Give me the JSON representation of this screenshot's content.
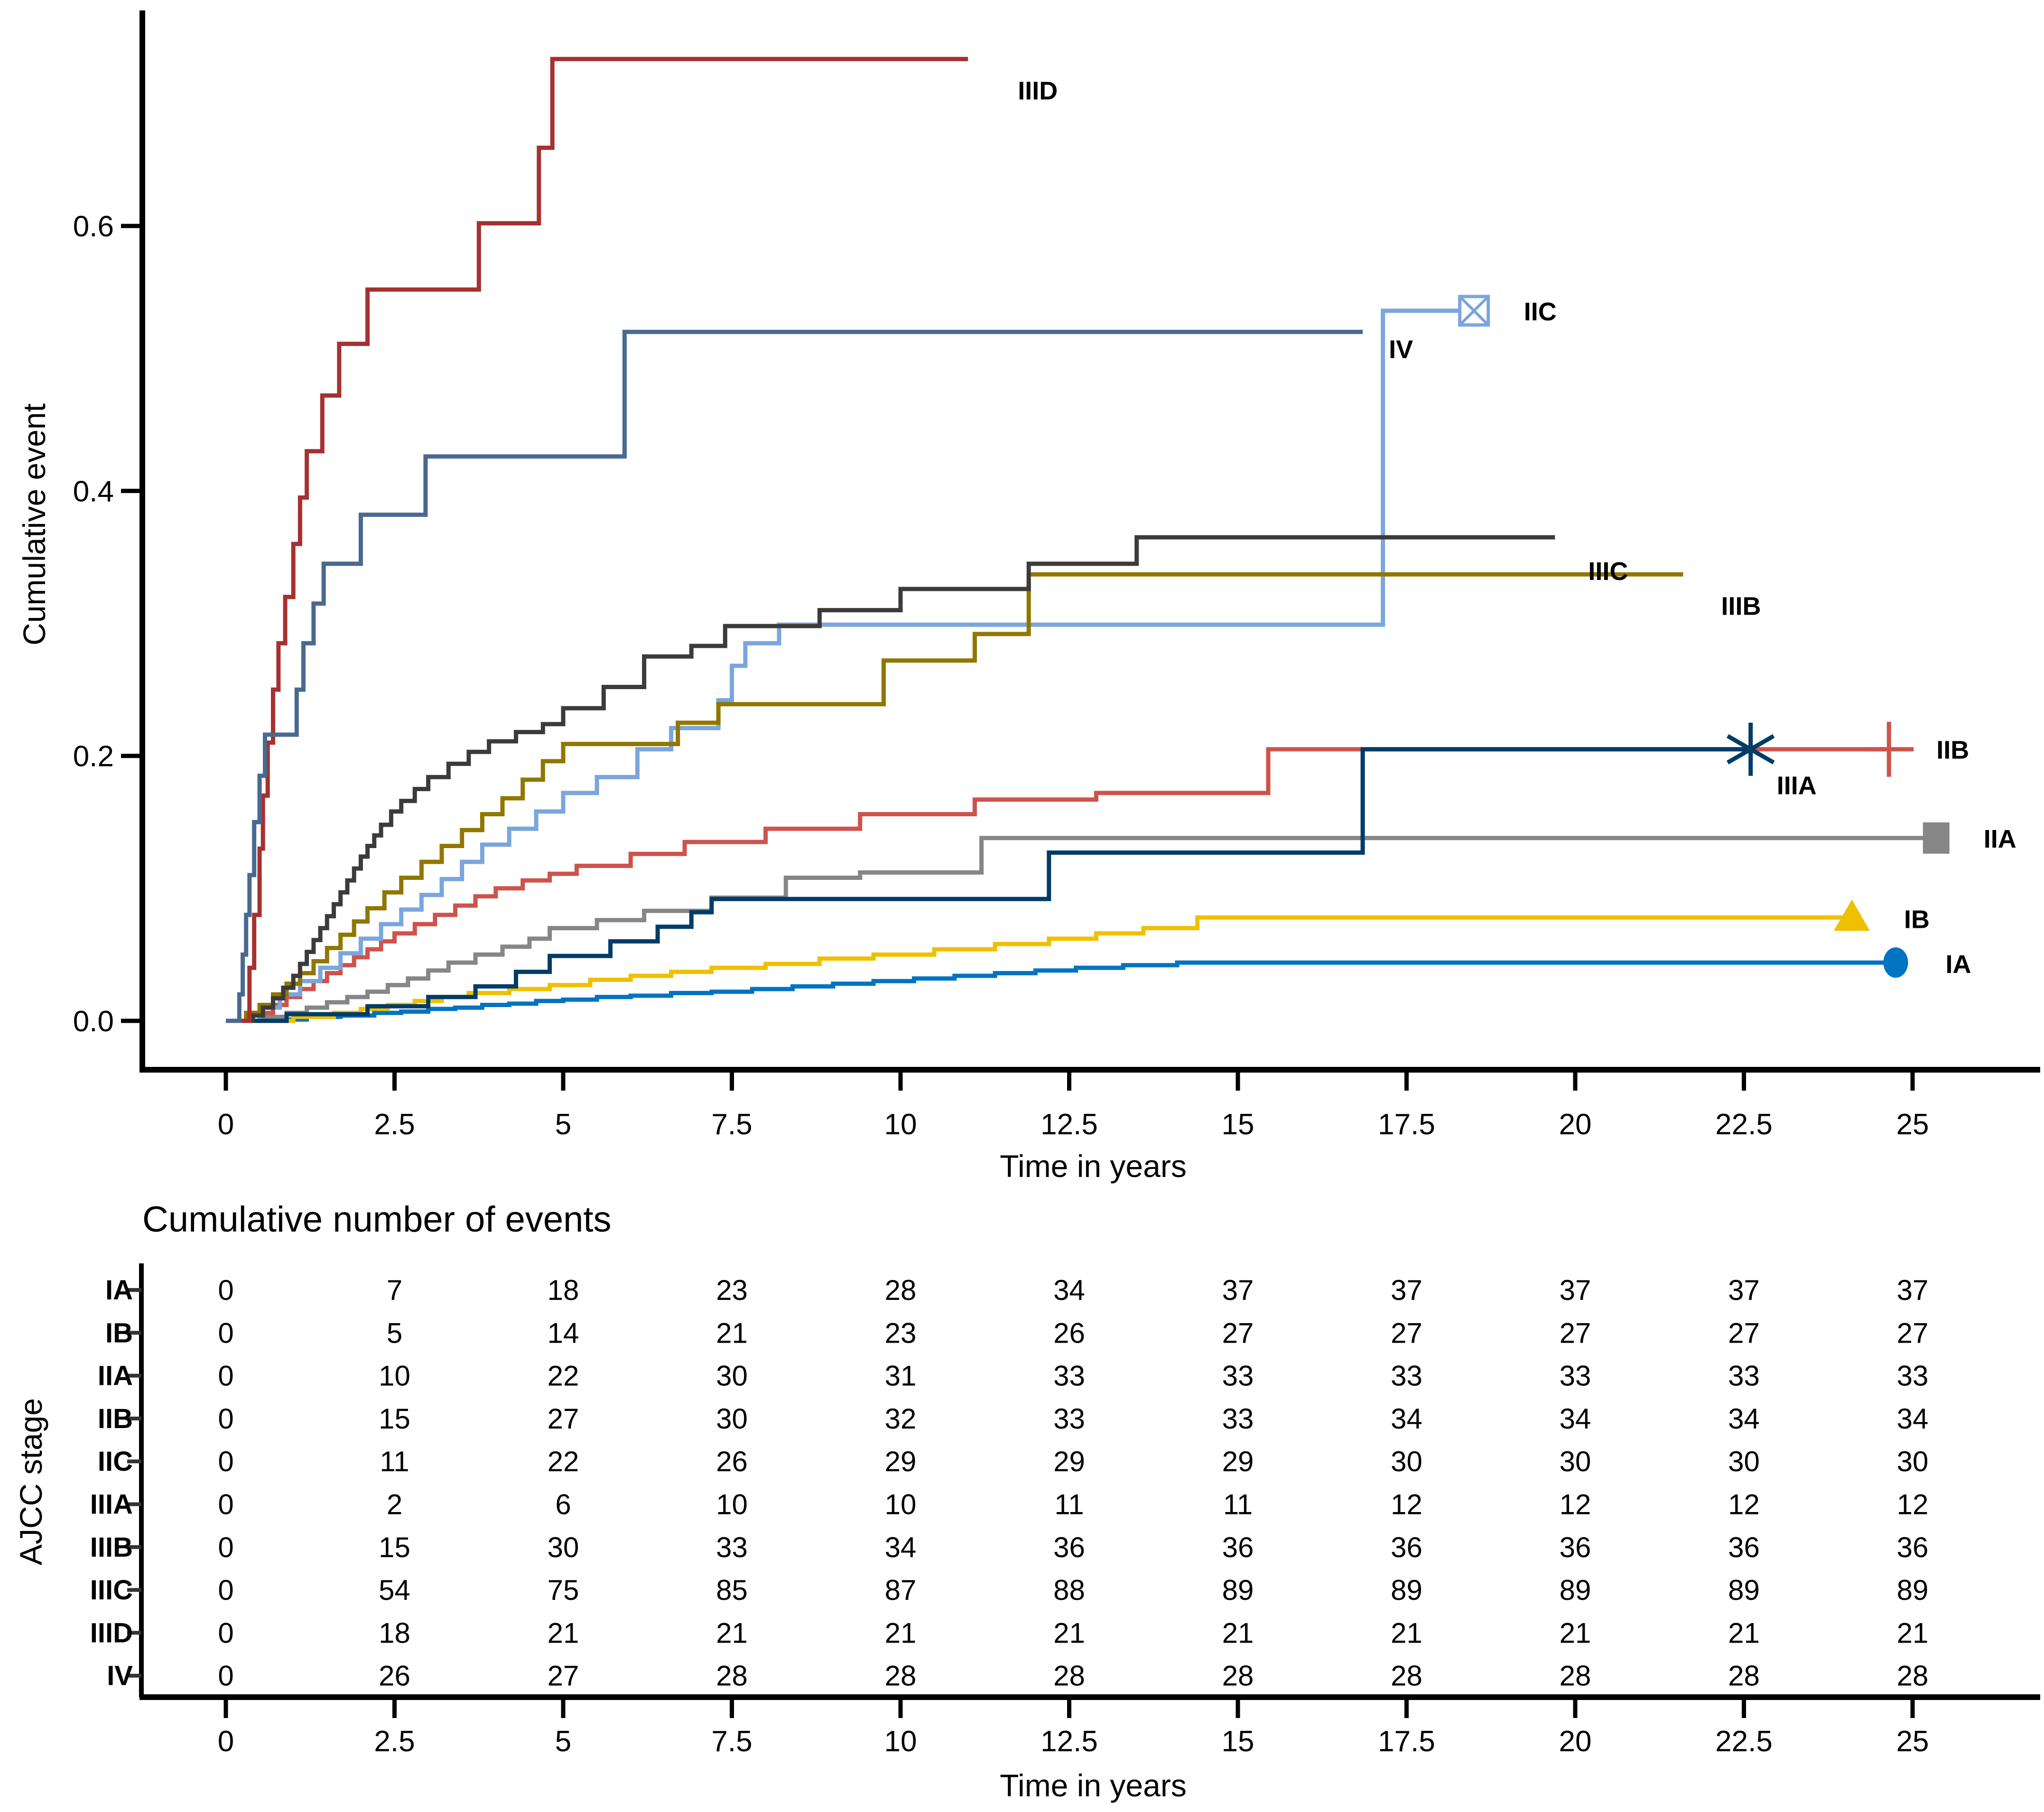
{
  "accent_colors": {
    "IA": "#0073C2",
    "IB": "#EFC000",
    "IIA": "#868686",
    "IIB": "#CD534C",
    "IIC": "#7AA6DC",
    "IIIA": "#003C67",
    "IIIB": "#8F7700",
    "IIIC": "#3B3B3B",
    "IIID": "#A73030",
    "IV": "#4A6990"
  },
  "chart_data": {
    "type": "line",
    "subtype": "step-cumulative-incidence",
    "title": "",
    "xlabel": "Time in years",
    "ylabel": "Cumulative event",
    "xticks": [
      0,
      2.5,
      5,
      7.5,
      10,
      12.5,
      15,
      17.5,
      20,
      22.5,
      25
    ],
    "xtick_labels": [
      "0",
      "2.5",
      "5",
      "7.5",
      "10",
      "12.5",
      "15",
      "17.5",
      "20",
      "22.5",
      "25"
    ],
    "yticks": [
      0.0,
      0.2,
      0.4,
      0.6
    ],
    "ytick_labels": [
      "0.0",
      "0.2",
      "0.4",
      "0.6"
    ],
    "xlim": [
      0,
      26.9
    ],
    "ylim": [
      0,
      0.76
    ],
    "grid": false,
    "legend_position": "end-of-line-labels",
    "series": [
      {
        "name": "IA",
        "color": "#0073C2",
        "marker": "circle",
        "end_t": 24.75,
        "label_dx": 105,
        "label_dy": 22,
        "points": [
          [
            0,
            0
          ],
          [
            0.7,
            0.001
          ],
          [
            1.2,
            0.003
          ],
          [
            1.7,
            0.004
          ],
          [
            2.2,
            0.006
          ],
          [
            2.6,
            0.007
          ],
          [
            3.0,
            0.009
          ],
          [
            3.4,
            0.01
          ],
          [
            3.8,
            0.012
          ],
          [
            4.2,
            0.013
          ],
          [
            4.6,
            0.015
          ],
          [
            5.0,
            0.016
          ],
          [
            5.5,
            0.018
          ],
          [
            6.0,
            0.019
          ],
          [
            6.6,
            0.021
          ],
          [
            7.2,
            0.022
          ],
          [
            7.8,
            0.024
          ],
          [
            8.4,
            0.026
          ],
          [
            9.0,
            0.028
          ],
          [
            9.6,
            0.03
          ],
          [
            10.2,
            0.032
          ],
          [
            10.8,
            0.034
          ],
          [
            11.4,
            0.036
          ],
          [
            12.0,
            0.038
          ],
          [
            12.6,
            0.04
          ],
          [
            13.3,
            0.042
          ],
          [
            14.1,
            0.044
          ]
        ]
      },
      {
        "name": "IB",
        "color": "#EFC000",
        "marker": "triangle",
        "end_t": 24.1,
        "label_dx": 110,
        "label_dy": 22,
        "points": [
          [
            0,
            0
          ],
          [
            1.0,
            0.003
          ],
          [
            1.6,
            0.006
          ],
          [
            2.0,
            0.009
          ],
          [
            2.4,
            0.012
          ],
          [
            2.8,
            0.015
          ],
          [
            3.2,
            0.018
          ],
          [
            3.6,
            0.021
          ],
          [
            4.2,
            0.024
          ],
          [
            4.8,
            0.027
          ],
          [
            5.4,
            0.031
          ],
          [
            6.0,
            0.034
          ],
          [
            6.6,
            0.037
          ],
          [
            7.2,
            0.04
          ],
          [
            8.0,
            0.043
          ],
          [
            8.8,
            0.047
          ],
          [
            9.6,
            0.05
          ],
          [
            10.5,
            0.054
          ],
          [
            11.4,
            0.058
          ],
          [
            12.2,
            0.062
          ],
          [
            12.9,
            0.066
          ],
          [
            13.6,
            0.07
          ],
          [
            14.4,
            0.078
          ]
        ]
      },
      {
        "name": "IIA",
        "color": "#868686",
        "marker": "square",
        "end_t": 25.35,
        "label_dx": 100,
        "label_dy": 20,
        "points": [
          [
            0,
            0
          ],
          [
            0.5,
            0.003
          ],
          [
            0.9,
            0.006
          ],
          [
            1.2,
            0.01
          ],
          [
            1.5,
            0.014
          ],
          [
            1.8,
            0.018
          ],
          [
            2.1,
            0.022
          ],
          [
            2.4,
            0.027
          ],
          [
            2.7,
            0.032
          ],
          [
            3.0,
            0.038
          ],
          [
            3.3,
            0.044
          ],
          [
            3.7,
            0.05
          ],
          [
            4.1,
            0.056
          ],
          [
            4.5,
            0.062
          ],
          [
            4.8,
            0.07
          ],
          [
            5.5,
            0.076
          ],
          [
            6.2,
            0.083
          ],
          [
            7.2,
            0.093
          ],
          [
            8.3,
            0.108
          ],
          [
            9.4,
            0.112
          ],
          [
            11.2,
            0.138
          ]
        ]
      },
      {
        "name": "IIB",
        "color": "#CD534C",
        "marker": "plus",
        "end_t": 24.65,
        "label_dx": 100,
        "label_dy": 20,
        "points": [
          [
            0,
            0
          ],
          [
            0.4,
            0.006
          ],
          [
            0.7,
            0.012
          ],
          [
            0.9,
            0.018
          ],
          [
            1.1,
            0.024
          ],
          [
            1.3,
            0.03
          ],
          [
            1.5,
            0.036
          ],
          [
            1.7,
            0.042
          ],
          [
            1.9,
            0.048
          ],
          [
            2.1,
            0.054
          ],
          [
            2.3,
            0.06
          ],
          [
            2.5,
            0.066
          ],
          [
            2.8,
            0.073
          ],
          [
            3.1,
            0.08
          ],
          [
            3.4,
            0.087
          ],
          [
            3.7,
            0.094
          ],
          [
            4.0,
            0.1
          ],
          [
            4.4,
            0.106
          ],
          [
            4.8,
            0.111
          ],
          [
            5.2,
            0.117
          ],
          [
            6.0,
            0.126
          ],
          [
            6.8,
            0.135
          ],
          [
            8.0,
            0.145
          ],
          [
            9.4,
            0.156
          ],
          [
            11.1,
            0.167
          ],
          [
            12.9,
            0.172
          ],
          [
            15.45,
            0.205
          ]
        ]
      },
      {
        "name": "IIC",
        "color": "#7AA6DC",
        "marker": "square-x",
        "end_t": 18.5,
        "label_dx": 105,
        "label_dy": 20,
        "points": [
          [
            0,
            0
          ],
          [
            0.5,
            0.01
          ],
          [
            0.8,
            0.02
          ],
          [
            1.1,
            0.03
          ],
          [
            1.4,
            0.04
          ],
          [
            1.7,
            0.051
          ],
          [
            2.0,
            0.062
          ],
          [
            2.3,
            0.073
          ],
          [
            2.6,
            0.084
          ],
          [
            2.9,
            0.095
          ],
          [
            3.2,
            0.107
          ],
          [
            3.5,
            0.12
          ],
          [
            3.8,
            0.133
          ],
          [
            4.2,
            0.145
          ],
          [
            4.6,
            0.158
          ],
          [
            5.0,
            0.172
          ],
          [
            5.5,
            0.184
          ],
          [
            6.1,
            0.205
          ],
          [
            6.6,
            0.221
          ],
          [
            7.3,
            0.242
          ],
          [
            7.5,
            0.268
          ],
          [
            7.7,
            0.285
          ],
          [
            8.2,
            0.299
          ],
          [
            17.15,
            0.536
          ]
        ]
      },
      {
        "name": "IIIA",
        "color": "#003C67",
        "marker": "asterisk",
        "end_t": 22.6,
        "label_dx": 55,
        "label_dy": 95,
        "points": [
          [
            0,
            0
          ],
          [
            0.9,
            0.005
          ],
          [
            2.1,
            0.011
          ],
          [
            3.0,
            0.018
          ],
          [
            3.7,
            0.026
          ],
          [
            4.3,
            0.037
          ],
          [
            4.8,
            0.049
          ],
          [
            5.7,
            0.06
          ],
          [
            6.4,
            0.071
          ],
          [
            6.9,
            0.082
          ],
          [
            7.2,
            0.092
          ],
          [
            12.2,
            0.127
          ],
          [
            16.85,
            0.205
          ]
        ]
      },
      {
        "name": "IIIB",
        "color": "#8F7700",
        "marker": "none",
        "end_t": 21.6,
        "label_dx": 80,
        "label_dy": 85,
        "points": [
          [
            0,
            0
          ],
          [
            0.3,
            0.006
          ],
          [
            0.5,
            0.012
          ],
          [
            0.7,
            0.02
          ],
          [
            0.9,
            0.028
          ],
          [
            1.1,
            0.036
          ],
          [
            1.3,
            0.045
          ],
          [
            1.5,
            0.055
          ],
          [
            1.7,
            0.065
          ],
          [
            1.9,
            0.075
          ],
          [
            2.1,
            0.085
          ],
          [
            2.35,
            0.097
          ],
          [
            2.6,
            0.108
          ],
          [
            2.9,
            0.12
          ],
          [
            3.2,
            0.132
          ],
          [
            3.5,
            0.144
          ],
          [
            3.8,
            0.156
          ],
          [
            4.1,
            0.168
          ],
          [
            4.4,
            0.182
          ],
          [
            4.7,
            0.196
          ],
          [
            5.0,
            0.209
          ],
          [
            6.7,
            0.225
          ],
          [
            7.3,
            0.239
          ],
          [
            9.75,
            0.272
          ],
          [
            11.1,
            0.292
          ],
          [
            11.9,
            0.337
          ]
        ]
      },
      {
        "name": "IIIC",
        "color": "#3B3B3B",
        "marker": "none",
        "end_t": 19.7,
        "label_dx": 70,
        "label_dy": 90,
        "points": [
          [
            0,
            0
          ],
          [
            0.4,
            0.004
          ],
          [
            0.55,
            0.01
          ],
          [
            0.7,
            0.017
          ],
          [
            0.85,
            0.025
          ],
          [
            1.0,
            0.034
          ],
          [
            1.1,
            0.043
          ],
          [
            1.2,
            0.052
          ],
          [
            1.3,
            0.061
          ],
          [
            1.4,
            0.07
          ],
          [
            1.5,
            0.079
          ],
          [
            1.6,
            0.088
          ],
          [
            1.7,
            0.097
          ],
          [
            1.8,
            0.106
          ],
          [
            1.9,
            0.115
          ],
          [
            2.0,
            0.124
          ],
          [
            2.1,
            0.132
          ],
          [
            2.2,
            0.14
          ],
          [
            2.3,
            0.148
          ],
          [
            2.45,
            0.158
          ],
          [
            2.6,
            0.166
          ],
          [
            2.8,
            0.175
          ],
          [
            3.0,
            0.184
          ],
          [
            3.3,
            0.194
          ],
          [
            3.6,
            0.203
          ],
          [
            3.9,
            0.211
          ],
          [
            4.3,
            0.218
          ],
          [
            4.7,
            0.224
          ],
          [
            5.0,
            0.236
          ],
          [
            5.6,
            0.252
          ],
          [
            6.2,
            0.275
          ],
          [
            6.9,
            0.283
          ],
          [
            7.4,
            0.298
          ],
          [
            8.8,
            0.31
          ],
          [
            10.0,
            0.326
          ],
          [
            11.9,
            0.345
          ],
          [
            13.5,
            0.365
          ]
        ]
      },
      {
        "name": "IIID",
        "color": "#A73030",
        "marker": "none",
        "end_t": 11.0,
        "label_dx": 105,
        "label_dy": 85,
        "points": [
          [
            0,
            0
          ],
          [
            0.35,
            0.04
          ],
          [
            0.42,
            0.08
          ],
          [
            0.5,
            0.13
          ],
          [
            0.55,
            0.17
          ],
          [
            0.62,
            0.21
          ],
          [
            0.7,
            0.25
          ],
          [
            0.78,
            0.285
          ],
          [
            0.88,
            0.32
          ],
          [
            1.0,
            0.36
          ],
          [
            1.1,
            0.395
          ],
          [
            1.2,
            0.43
          ],
          [
            1.43,
            0.472
          ],
          [
            1.68,
            0.511
          ],
          [
            2.1,
            0.552
          ],
          [
            3.75,
            0.602
          ],
          [
            4.64,
            0.659
          ],
          [
            4.84,
            0.726
          ]
        ]
      },
      {
        "name": "IV",
        "color": "#4A6990",
        "marker": "none",
        "end_t": 16.85,
        "label_dx": 55,
        "label_dy": 55,
        "points": [
          [
            0,
            0
          ],
          [
            0.2,
            0.02
          ],
          [
            0.25,
            0.05
          ],
          [
            0.3,
            0.08
          ],
          [
            0.35,
            0.11
          ],
          [
            0.42,
            0.15
          ],
          [
            0.5,
            0.185
          ],
          [
            0.58,
            0.216
          ],
          [
            1.05,
            0.25
          ],
          [
            1.15,
            0.285
          ],
          [
            1.3,
            0.315
          ],
          [
            1.45,
            0.345
          ],
          [
            2.0,
            0.382
          ],
          [
            2.96,
            0.426
          ],
          [
            5.91,
            0.52
          ]
        ]
      }
    ]
  },
  "events_table": {
    "title": "Cumulative number of events",
    "ylabel": "AJCC stage",
    "xlabel": "Time in years",
    "times": [
      0,
      2.5,
      5,
      7.5,
      10,
      12.5,
      15,
      17.5,
      20,
      22.5,
      25
    ],
    "time_labels": [
      "0",
      "2.5",
      "5",
      "7.5",
      "10",
      "12.5",
      "15",
      "17.5",
      "20",
      "22.5",
      "25"
    ],
    "rows": [
      {
        "stage": "IA",
        "color": "#0073C2",
        "values": [
          0,
          7,
          18,
          23,
          28,
          34,
          37,
          37,
          37,
          37,
          37
        ]
      },
      {
        "stage": "IB",
        "color": "#EFC000",
        "values": [
          0,
          5,
          14,
          21,
          23,
          26,
          27,
          27,
          27,
          27,
          27
        ]
      },
      {
        "stage": "IIA",
        "color": "#868686",
        "values": [
          0,
          10,
          22,
          30,
          31,
          33,
          33,
          33,
          33,
          33,
          33
        ]
      },
      {
        "stage": "IIB",
        "color": "#CD534C",
        "values": [
          0,
          15,
          27,
          30,
          32,
          33,
          33,
          34,
          34,
          34,
          34
        ]
      },
      {
        "stage": "IIC",
        "color": "#7AA6DC",
        "values": [
          0,
          11,
          22,
          26,
          29,
          29,
          29,
          30,
          30,
          30,
          30
        ]
      },
      {
        "stage": "IIIA",
        "color": "#003C67",
        "values": [
          0,
          2,
          6,
          10,
          10,
          11,
          11,
          12,
          12,
          12,
          12
        ]
      },
      {
        "stage": "IIIB",
        "color": "#8F7700",
        "values": [
          0,
          15,
          30,
          33,
          34,
          36,
          36,
          36,
          36,
          36,
          36
        ]
      },
      {
        "stage": "IIIC",
        "color": "#3B3B3B",
        "values": [
          0,
          54,
          75,
          85,
          87,
          88,
          89,
          89,
          89,
          89,
          89
        ]
      },
      {
        "stage": "IIID",
        "color": "#A73030",
        "values": [
          0,
          18,
          21,
          21,
          21,
          21,
          21,
          21,
          21,
          21,
          21
        ]
      },
      {
        "stage": "IV",
        "color": "#4A6990",
        "values": [
          0,
          26,
          27,
          28,
          28,
          28,
          28,
          28,
          28,
          28,
          28
        ]
      }
    ]
  }
}
